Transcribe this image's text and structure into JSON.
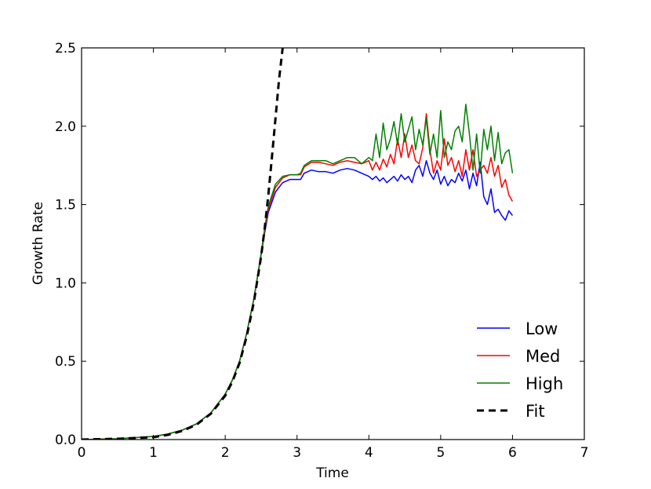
{
  "chart_data": {
    "type": "line",
    "title": "",
    "xlabel": "Time",
    "ylabel": "Growth Rate",
    "xlim": [
      0,
      7
    ],
    "ylim": [
      0,
      2.5
    ],
    "xticks": [
      "0",
      "1",
      "2",
      "3",
      "4",
      "5",
      "6",
      "7"
    ],
    "yticks": [
      "0.0",
      "0.5",
      "1.0",
      "1.5",
      "2.0",
      "2.5"
    ],
    "grid": false,
    "legend": "lower-right",
    "series": [
      {
        "name": "Low",
        "color": "#0000ff",
        "style": "solid",
        "x": [
          0.0,
          0.5,
          1.0,
          1.2,
          1.4,
          1.6,
          1.8,
          2.0,
          2.1,
          2.2,
          2.3,
          2.4,
          2.5,
          2.55,
          2.6,
          2.7,
          2.8,
          2.9,
          3.0,
          3.05,
          3.1,
          3.2,
          3.3,
          3.4,
          3.5,
          3.6,
          3.7,
          3.8,
          3.9,
          4.0,
          4.05,
          4.1,
          4.15,
          4.2,
          4.25,
          4.3,
          4.35,
          4.4,
          4.45,
          4.5,
          4.55,
          4.6,
          4.65,
          4.7,
          4.75,
          4.8,
          4.85,
          4.9,
          4.95,
          5.0,
          5.05,
          5.1,
          5.15,
          5.2,
          5.25,
          5.3,
          5.35,
          5.4,
          5.45,
          5.5,
          5.55,
          5.6,
          5.65,
          5.7,
          5.75,
          5.8,
          5.85,
          5.9,
          5.95,
          6.0
        ],
        "y": [
          0.0,
          0.005,
          0.02,
          0.035,
          0.06,
          0.1,
          0.17,
          0.29,
          0.38,
          0.5,
          0.68,
          0.9,
          1.18,
          1.32,
          1.45,
          1.58,
          1.64,
          1.66,
          1.66,
          1.66,
          1.7,
          1.72,
          1.71,
          1.71,
          1.7,
          1.72,
          1.73,
          1.72,
          1.7,
          1.68,
          1.66,
          1.68,
          1.65,
          1.67,
          1.64,
          1.66,
          1.68,
          1.65,
          1.69,
          1.66,
          1.68,
          1.64,
          1.72,
          1.75,
          1.68,
          1.78,
          1.7,
          1.66,
          1.72,
          1.63,
          1.68,
          1.62,
          1.66,
          1.64,
          1.7,
          1.65,
          1.72,
          1.6,
          1.7,
          1.62,
          1.77,
          1.55,
          1.5,
          1.6,
          1.45,
          1.47,
          1.43,
          1.4,
          1.46,
          1.43
        ]
      },
      {
        "name": "Med",
        "color": "#ff0000",
        "style": "solid",
        "x": [
          0.0,
          0.5,
          1.0,
          1.2,
          1.4,
          1.6,
          1.8,
          2.0,
          2.1,
          2.2,
          2.3,
          2.4,
          2.5,
          2.55,
          2.6,
          2.7,
          2.8,
          2.9,
          3.0,
          3.05,
          3.1,
          3.2,
          3.3,
          3.4,
          3.5,
          3.6,
          3.7,
          3.8,
          3.9,
          4.0,
          4.05,
          4.1,
          4.15,
          4.2,
          4.25,
          4.3,
          4.35,
          4.4,
          4.45,
          4.5,
          4.55,
          4.6,
          4.65,
          4.7,
          4.75,
          4.8,
          4.85,
          4.9,
          4.95,
          5.0,
          5.05,
          5.1,
          5.15,
          5.2,
          5.25,
          5.3,
          5.35,
          5.4,
          5.45,
          5.5,
          5.55,
          5.6,
          5.65,
          5.7,
          5.75,
          5.8,
          5.85,
          5.9,
          5.95,
          6.0
        ],
        "y": [
          0.0,
          0.005,
          0.02,
          0.035,
          0.06,
          0.1,
          0.17,
          0.29,
          0.38,
          0.5,
          0.68,
          0.9,
          1.18,
          1.33,
          1.47,
          1.61,
          1.67,
          1.69,
          1.69,
          1.69,
          1.74,
          1.77,
          1.77,
          1.76,
          1.75,
          1.77,
          1.78,
          1.77,
          1.76,
          1.78,
          1.72,
          1.77,
          1.72,
          1.79,
          1.74,
          1.82,
          1.76,
          1.92,
          1.8,
          1.95,
          1.8,
          1.88,
          1.78,
          1.76,
          1.86,
          2.08,
          1.85,
          1.7,
          1.78,
          1.72,
          1.92,
          1.75,
          1.8,
          1.71,
          1.78,
          1.68,
          1.85,
          1.72,
          1.85,
          1.68,
          1.72,
          1.75,
          1.7,
          1.8,
          1.68,
          1.75,
          1.61,
          1.66,
          1.56,
          1.52
        ]
      },
      {
        "name": "High",
        "color": "#008000",
        "style": "solid",
        "x": [
          0.0,
          0.5,
          1.0,
          1.2,
          1.4,
          1.6,
          1.8,
          2.0,
          2.1,
          2.2,
          2.3,
          2.4,
          2.5,
          2.55,
          2.6,
          2.7,
          2.8,
          2.9,
          3.0,
          3.05,
          3.1,
          3.2,
          3.3,
          3.4,
          3.5,
          3.6,
          3.7,
          3.8,
          3.9,
          4.0,
          4.05,
          4.1,
          4.15,
          4.2,
          4.25,
          4.3,
          4.35,
          4.4,
          4.45,
          4.5,
          4.55,
          4.6,
          4.65,
          4.7,
          4.75,
          4.8,
          4.85,
          4.9,
          4.95,
          5.0,
          5.05,
          5.1,
          5.15,
          5.2,
          5.25,
          5.3,
          5.35,
          5.4,
          5.45,
          5.5,
          5.55,
          5.6,
          5.65,
          5.7,
          5.75,
          5.8,
          5.85,
          5.9,
          5.95,
          6.0
        ],
        "y": [
          0.0,
          0.005,
          0.02,
          0.035,
          0.06,
          0.1,
          0.17,
          0.29,
          0.38,
          0.5,
          0.68,
          0.9,
          1.19,
          1.35,
          1.49,
          1.63,
          1.68,
          1.69,
          1.69,
          1.7,
          1.75,
          1.78,
          1.78,
          1.78,
          1.76,
          1.78,
          1.8,
          1.8,
          1.76,
          1.8,
          1.78,
          1.95,
          1.8,
          2.02,
          1.85,
          1.92,
          2.03,
          1.88,
          2.08,
          1.9,
          1.98,
          2.06,
          1.85,
          1.98,
          1.88,
          2.05,
          1.82,
          1.95,
          1.8,
          2.1,
          1.8,
          1.9,
          1.85,
          1.97,
          2.0,
          1.9,
          2.14,
          1.95,
          1.72,
          1.95,
          1.7,
          1.98,
          1.85,
          2.0,
          1.78,
          1.96,
          1.76,
          1.83,
          1.85,
          1.7
        ]
      },
      {
        "name": "Fit",
        "color": "#000000",
        "style": "dashed",
        "x": [
          0.0,
          0.5,
          1.0,
          1.2,
          1.4,
          1.6,
          1.8,
          2.0,
          2.1,
          2.2,
          2.3,
          2.4,
          2.5,
          2.55,
          2.6,
          2.65,
          2.7,
          2.75,
          2.8
        ],
        "y": [
          0.0,
          0.005,
          0.015,
          0.03,
          0.055,
          0.095,
          0.165,
          0.28,
          0.37,
          0.49,
          0.66,
          0.88,
          1.17,
          1.35,
          1.56,
          1.8,
          2.05,
          2.3,
          2.5
        ]
      }
    ]
  }
}
